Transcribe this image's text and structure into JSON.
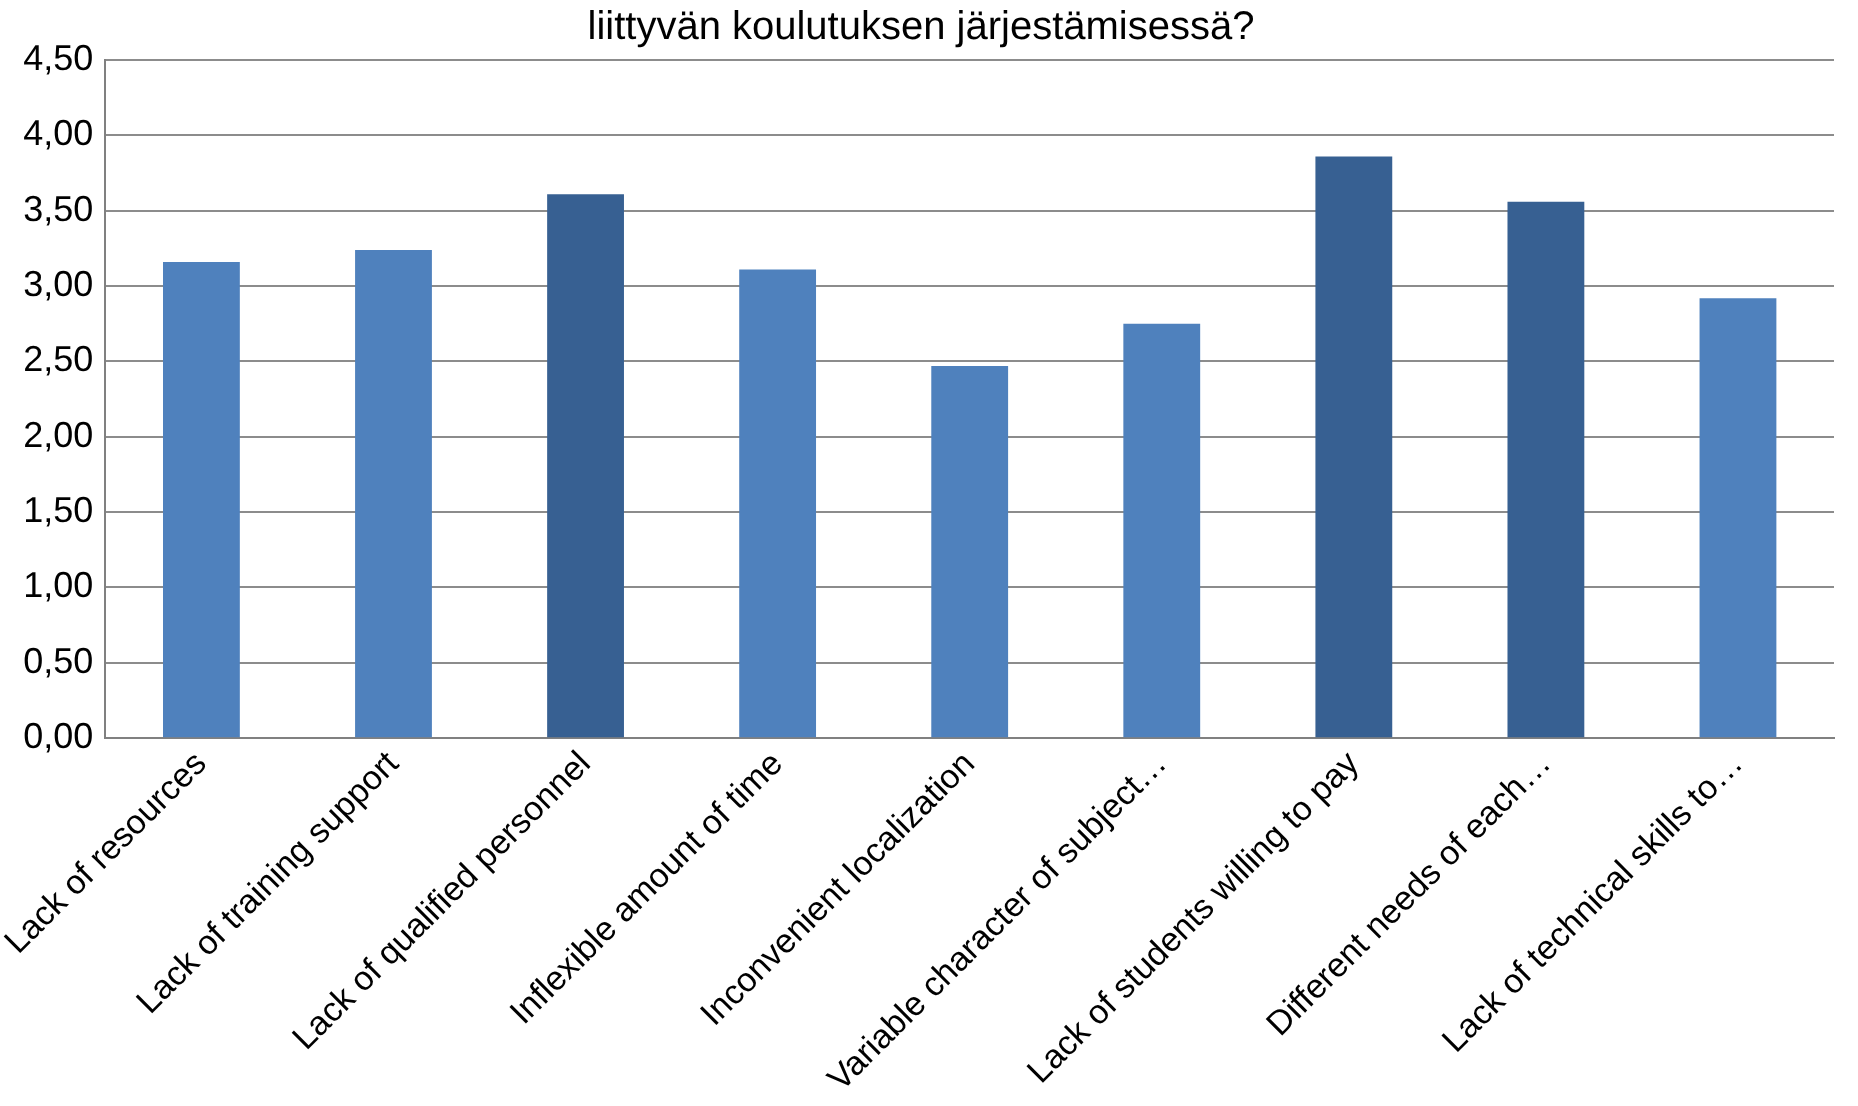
{
  "chart_data": {
    "type": "bar",
    "title": "liittyvän koulutuksen järjestämisessä?",
    "categories": [
      "Lack of resources",
      "Lack of training support",
      "Lack of qualified personnel",
      "Inflexible amount of time",
      "Inconvenient localization",
      "Variable character of subject…",
      "Lack of students willing to pay",
      "Different needs of each…",
      "Lack of technical skills to…"
    ],
    "values": [
      3.16,
      3.24,
      3.61,
      3.11,
      2.47,
      2.75,
      3.86,
      3.56,
      2.92
    ],
    "colors": [
      "#4f81bd",
      "#4f81bd",
      "#376092",
      "#4f81bd",
      "#4f81bd",
      "#4f81bd",
      "#376092",
      "#376092",
      "#4f81bd"
    ],
    "ylim": [
      0,
      4.5
    ],
    "yticks": [
      {
        "value": 0,
        "label": "0,00"
      },
      {
        "value": 0.5,
        "label": "0,50"
      },
      {
        "value": 1,
        "label": "1,00"
      },
      {
        "value": 1.5,
        "label": "1,50"
      },
      {
        "value": 2,
        "label": "2,00"
      },
      {
        "value": 2.5,
        "label": "2,50"
      },
      {
        "value": 3,
        "label": "3,00"
      },
      {
        "value": 3.5,
        "label": "3,50"
      },
      {
        "value": 4,
        "label": "4,00"
      },
      {
        "value": 4.5,
        "label": "4,50"
      }
    ],
    "grid": "y",
    "legend": false
  }
}
